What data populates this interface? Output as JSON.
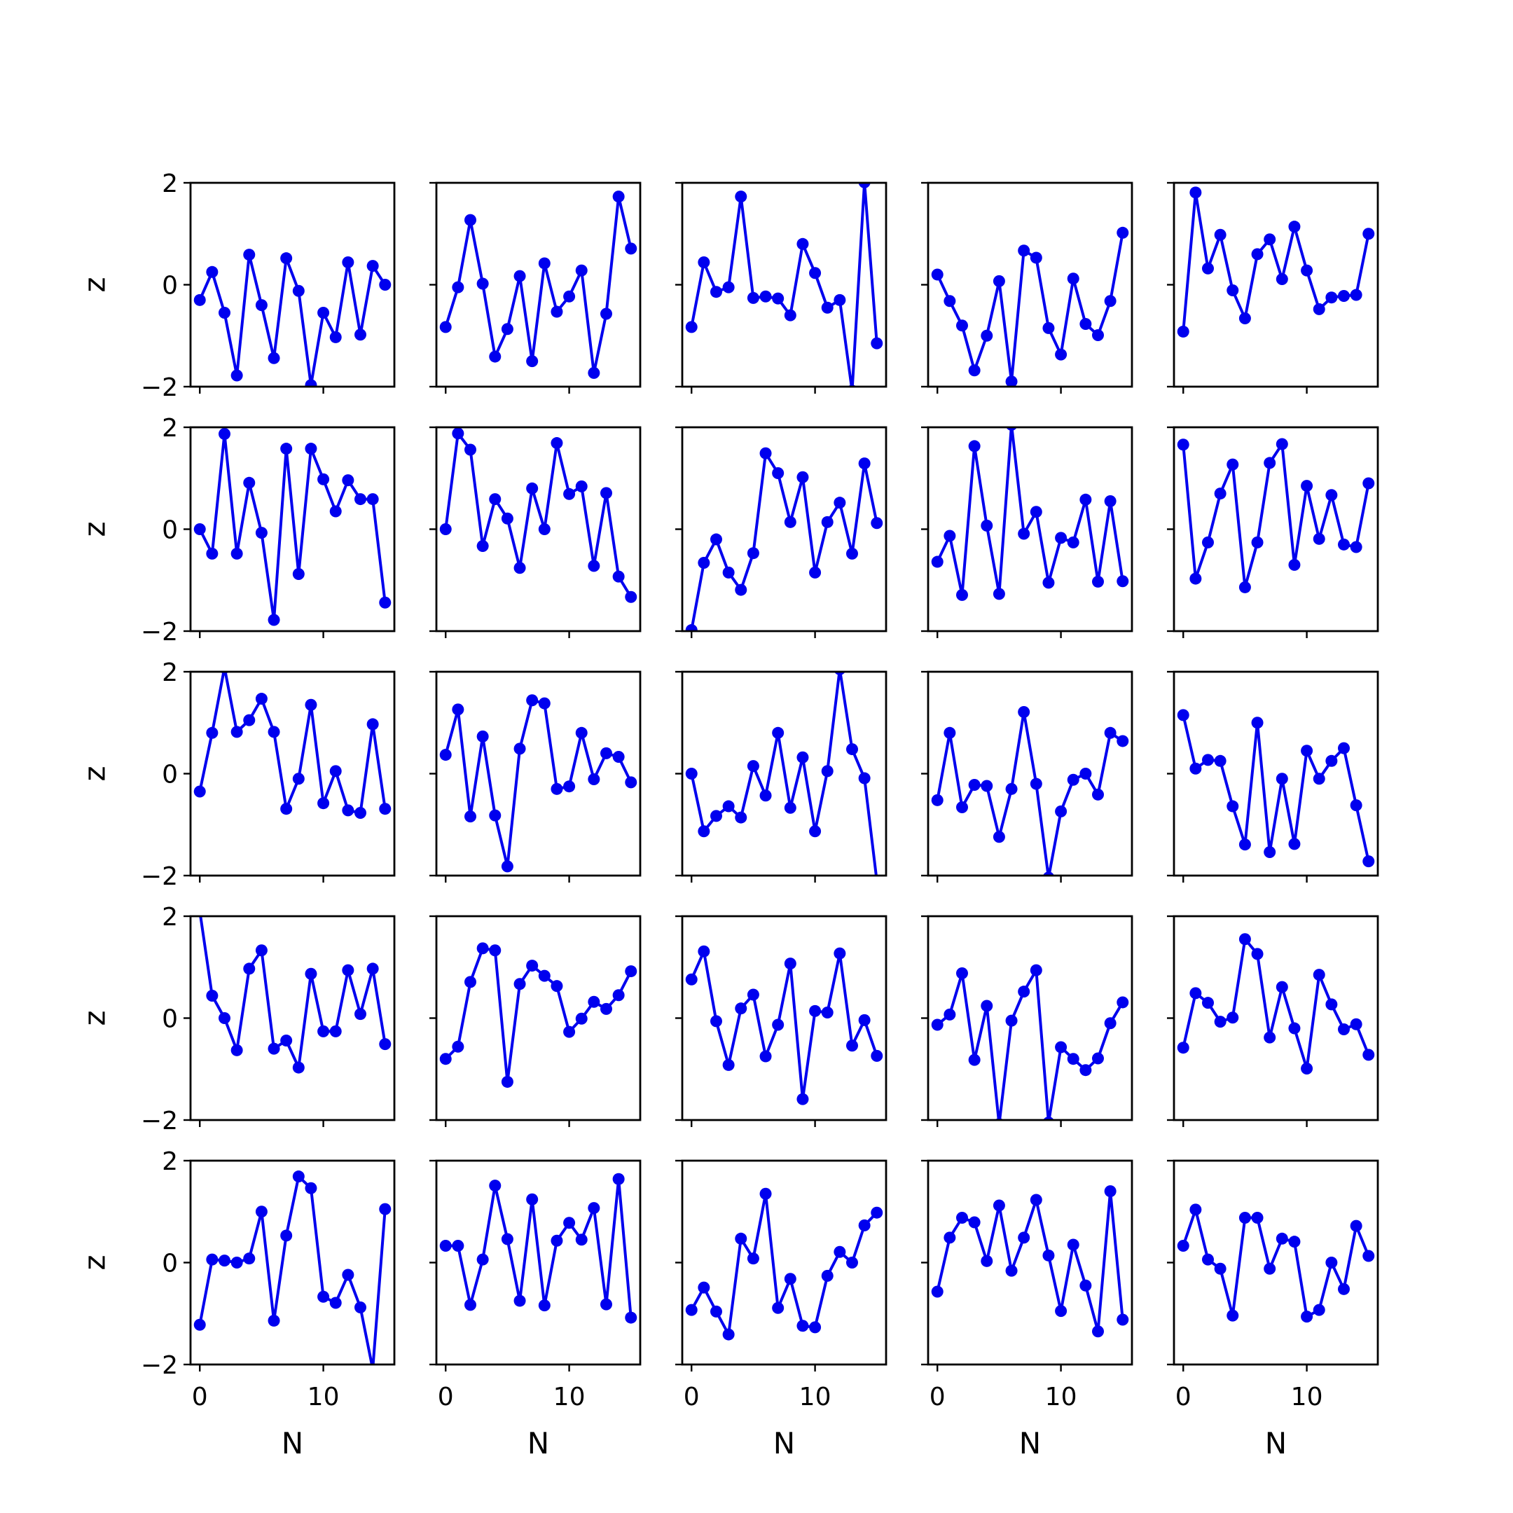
{
  "figure": {
    "rows": 5,
    "cols": 5,
    "line_color": "#0000ee",
    "marker": "circle",
    "sharex": true,
    "sharey": true
  },
  "chart_data": {
    "type": "line",
    "layout": "5x5 grid of subplots",
    "xlabel": "N",
    "ylabel": "z",
    "xlim": [
      -0.75,
      15.75
    ],
    "ylim": [
      -2,
      2
    ],
    "xticks": [
      0,
      10
    ],
    "yticks": [
      -2,
      0,
      2
    ],
    "x": [
      0,
      1,
      2,
      3,
      4,
      5,
      6,
      7,
      8,
      9,
      10,
      11,
      12,
      13,
      14,
      15
    ],
    "grid": false,
    "panels": [
      {
        "row": 1,
        "col": 1,
        "values": [
          -0.3,
          0.25,
          -0.55,
          -1.78,
          0.59,
          -0.4,
          -1.44,
          0.52,
          -0.12,
          -1.97,
          -0.55,
          -1.03,
          0.44,
          -0.98,
          0.37,
          0.0
        ]
      },
      {
        "row": 1,
        "col": 2,
        "values": [
          -0.83,
          -0.05,
          1.27,
          0.02,
          -1.41,
          -0.87,
          0.17,
          -1.5,
          0.42,
          -0.53,
          -0.23,
          0.28,
          -1.73,
          -0.57,
          1.73,
          0.71
        ]
      },
      {
        "row": 1,
        "col": 3,
        "values": [
          -0.83,
          0.44,
          -0.14,
          -0.05,
          1.73,
          -0.26,
          -0.23,
          -0.27,
          -0.6,
          0.8,
          0.23,
          -0.45,
          -0.3,
          -2.08,
          2.01,
          -1.15
        ]
      },
      {
        "row": 1,
        "col": 4,
        "values": [
          0.2,
          -0.32,
          -0.8,
          -1.68,
          -1.0,
          0.07,
          -1.9,
          0.67,
          0.53,
          -0.85,
          -1.37,
          0.12,
          -0.77,
          -0.99,
          -0.32,
          1.02
        ]
      },
      {
        "row": 1,
        "col": 5,
        "values": [
          -0.92,
          1.81,
          0.32,
          0.98,
          -0.11,
          -0.66,
          0.6,
          0.89,
          0.11,
          1.14,
          0.28,
          -0.48,
          -0.25,
          -0.22,
          -0.2,
          1.0
        ]
      },
      {
        "row": 2,
        "col": 1,
        "values": [
          0.0,
          -0.48,
          1.87,
          -0.48,
          0.91,
          -0.07,
          -1.78,
          1.58,
          -0.88,
          1.58,
          0.98,
          0.35,
          0.96,
          0.59,
          0.59,
          -1.44
        ]
      },
      {
        "row": 2,
        "col": 2,
        "values": [
          0.0,
          1.88,
          1.56,
          -0.33,
          0.59,
          0.21,
          -0.76,
          0.8,
          0.0,
          1.69,
          0.69,
          0.84,
          -0.72,
          0.71,
          -0.93,
          -1.33
        ]
      },
      {
        "row": 2,
        "col": 3,
        "values": [
          -1.98,
          -0.66,
          -0.2,
          -0.85,
          -1.19,
          -0.47,
          1.49,
          1.1,
          0.14,
          1.02,
          -0.85,
          0.14,
          0.52,
          -0.48,
          1.29,
          0.12
        ]
      },
      {
        "row": 2,
        "col": 4,
        "values": [
          -0.64,
          -0.13,
          -1.29,
          1.63,
          0.07,
          -1.27,
          2.05,
          -0.09,
          0.34,
          -1.05,
          -0.17,
          -0.26,
          0.58,
          -1.03,
          0.55,
          -1.02
        ]
      },
      {
        "row": 2,
        "col": 5,
        "values": [
          1.66,
          -0.97,
          -0.26,
          0.7,
          1.27,
          -1.14,
          -0.26,
          1.3,
          1.67,
          -0.7,
          0.85,
          -0.19,
          0.67,
          -0.3,
          -0.35,
          0.9
        ]
      },
      {
        "row": 3,
        "col": 1,
        "values": [
          -0.35,
          0.8,
          2.08,
          0.82,
          1.05,
          1.47,
          0.82,
          -0.69,
          -0.1,
          1.35,
          -0.58,
          0.05,
          -0.72,
          -0.77,
          0.97,
          -0.69
        ]
      },
      {
        "row": 3,
        "col": 2,
        "values": [
          0.37,
          1.26,
          -0.84,
          0.73,
          -0.82,
          -1.82,
          0.49,
          1.44,
          1.38,
          -0.3,
          -0.25,
          0.8,
          -0.11,
          0.4,
          0.33,
          -0.17
        ]
      },
      {
        "row": 3,
        "col": 3,
        "values": [
          0.0,
          -1.13,
          -0.83,
          -0.64,
          -0.86,
          0.15,
          -0.43,
          0.8,
          -0.67,
          0.32,
          -1.13,
          0.05,
          2.05,
          0.48,
          -0.09,
          -2.1
        ]
      },
      {
        "row": 3,
        "col": 4,
        "values": [
          -0.52,
          0.8,
          -0.66,
          -0.22,
          -0.24,
          -1.24,
          -0.3,
          1.21,
          -0.2,
          -2.04,
          -0.74,
          -0.12,
          0.0,
          -0.41,
          0.8,
          0.64
        ]
      },
      {
        "row": 3,
        "col": 5,
        "values": [
          1.15,
          0.1,
          0.27,
          0.25,
          -0.64,
          -1.39,
          1.0,
          -1.54,
          -0.1,
          -1.38,
          0.45,
          -0.1,
          0.25,
          0.5,
          -0.62,
          -1.72
        ]
      },
      {
        "row": 4,
        "col": 1,
        "values": [
          2.1,
          0.44,
          0.0,
          -0.63,
          0.97,
          1.33,
          -0.6,
          -0.44,
          -0.97,
          0.87,
          -0.26,
          -0.26,
          0.94,
          0.08,
          0.97,
          -0.51
        ]
      },
      {
        "row": 4,
        "col": 2,
        "values": [
          -0.8,
          -0.56,
          0.71,
          1.37,
          1.33,
          -1.25,
          0.67,
          1.03,
          0.83,
          0.63,
          -0.27,
          -0.01,
          0.32,
          0.18,
          0.45,
          0.92
        ]
      },
      {
        "row": 4,
        "col": 3,
        "values": [
          0.76,
          1.31,
          -0.06,
          -0.92,
          0.19,
          0.46,
          -0.75,
          -0.13,
          1.07,
          -1.59,
          0.14,
          0.11,
          1.27,
          -0.54,
          -0.04,
          -0.74
        ]
      },
      {
        "row": 4,
        "col": 4,
        "values": [
          -0.13,
          0.07,
          0.88,
          -0.82,
          0.24,
          -2.08,
          -0.05,
          0.52,
          0.94,
          -2.05,
          -0.57,
          -0.8,
          -1.02,
          -0.79,
          -0.1,
          0.31
        ]
      },
      {
        "row": 4,
        "col": 5,
        "values": [
          -0.58,
          0.49,
          0.3,
          -0.07,
          0.01,
          1.55,
          1.26,
          -0.38,
          0.61,
          -0.2,
          -0.99,
          0.85,
          0.27,
          -0.22,
          -0.12,
          -0.72
        ]
      },
      {
        "row": 5,
        "col": 1,
        "values": [
          -1.22,
          0.06,
          0.04,
          0.0,
          0.08,
          1.0,
          -1.14,
          0.53,
          1.69,
          1.46,
          -0.67,
          -0.79,
          -0.24,
          -0.88,
          -2.09,
          1.05
        ]
      },
      {
        "row": 5,
        "col": 2,
        "values": [
          0.33,
          0.33,
          -0.83,
          0.06,
          1.51,
          0.46,
          -0.75,
          1.24,
          -0.84,
          0.43,
          0.78,
          0.45,
          1.07,
          -0.82,
          1.64,
          -1.08
        ]
      },
      {
        "row": 5,
        "col": 3,
        "values": [
          -0.93,
          -0.49,
          -0.96,
          -1.41,
          0.47,
          0.08,
          1.35,
          -0.89,
          -0.32,
          -1.24,
          -1.27,
          -0.26,
          0.21,
          0.0,
          0.73,
          0.98
        ]
      },
      {
        "row": 5,
        "col": 4,
        "values": [
          -0.57,
          0.49,
          0.88,
          0.79,
          0.03,
          1.12,
          -0.16,
          0.49,
          1.23,
          0.14,
          -0.95,
          0.35,
          -0.45,
          -1.35,
          1.4,
          -1.12
        ]
      },
      {
        "row": 5,
        "col": 5,
        "values": [
          0.33,
          1.04,
          0.06,
          -0.12,
          -1.04,
          0.88,
          0.88,
          -0.12,
          0.47,
          0.41,
          -1.06,
          -0.93,
          0.0,
          -0.52,
          0.72,
          0.13
        ]
      }
    ]
  }
}
